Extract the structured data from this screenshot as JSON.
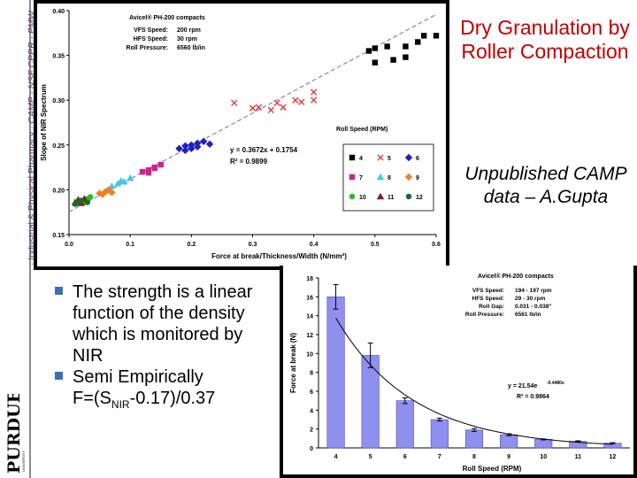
{
  "sidebar": {
    "text_a": "· Industrial & Physical Pharmacy · ",
    "text_b": "CAMP - NSF CPPR - PMW",
    "logo_text": "PURDUE",
    "logo_sub": "UNIVERSITY"
  },
  "slide": {
    "title": "Dry Granulation by Roller Compaction",
    "subtitle": "Unpublished CAMP data – A.Gupta",
    "bullets": [
      "The strength is a linear function of the density which is monitored by NIR",
      "Semi Empirically"
    ],
    "formula_pre": "F=(S",
    "formula_sub": "NIR",
    "formula_post": "-0.17)/0.37"
  },
  "colors": {
    "title": "#c00000",
    "bullet_marker": "#3f6fb0",
    "sidebar_text": "#5a2f7a",
    "bar_fill": "#8f8fef"
  },
  "chart_data": [
    {
      "type": "scatter",
      "xlabel": "Force at break/Thickness/Width (N/mm²)",
      "ylabel": "Slope of NIR Spectrum",
      "xlim": [
        0.0,
        0.6
      ],
      "ylim": [
        0.15,
        0.4
      ],
      "x_ticks": [
        "0.0",
        "0.1",
        "0.2",
        "0.3",
        "0.4",
        "0.5",
        "0.6"
      ],
      "y_ticks": [
        "0.15",
        "0.20",
        "0.25",
        "0.30",
        "0.35",
        "0.40"
      ],
      "grid": false,
      "info": {
        "header": "Avicel® PH-200 compacts",
        "rows": [
          [
            "VFS Speed:",
            "200 rpm"
          ],
          [
            "HFS Speed:",
            "30 rpm"
          ],
          [
            "Roll Pressure:",
            "6560 lb/in"
          ]
        ]
      },
      "equation": "y = 0.3672x + 0.1754",
      "r2": "R² = 0.9899",
      "fit": {
        "slope": 0.3672,
        "intercept": 0.1754,
        "x_range": [
          0.0,
          0.6
        ]
      },
      "legend_title": "Roll Speed (RPM)",
      "legend_position": "bottom-right",
      "series": [
        {
          "name": "4",
          "marker": "square",
          "color": "#000000",
          "points": [
            [
              0.49,
              0.355
            ],
            [
              0.5,
              0.358
            ],
            [
              0.52,
              0.36
            ],
            [
              0.55,
              0.36
            ],
            [
              0.57,
              0.365
            ],
            [
              0.58,
              0.372
            ],
            [
              0.6,
              0.372
            ],
            [
              0.53,
              0.345
            ],
            [
              0.55,
              0.348
            ],
            [
              0.5,
              0.342
            ]
          ]
        },
        {
          "name": "5",
          "marker": "x",
          "color": "#e03030",
          "points": [
            [
              0.27,
              0.297
            ],
            [
              0.3,
              0.291
            ],
            [
              0.31,
              0.292
            ],
            [
              0.33,
              0.289
            ],
            [
              0.35,
              0.292
            ],
            [
              0.37,
              0.3
            ],
            [
              0.38,
              0.298
            ],
            [
              0.4,
              0.309
            ],
            [
              0.34,
              0.297
            ],
            [
              0.4,
              0.3
            ]
          ]
        },
        {
          "name": "6",
          "marker": "diamond",
          "color": "#2020c0",
          "points": [
            [
              0.18,
              0.246
            ],
            [
              0.19,
              0.249
            ],
            [
              0.2,
              0.25
            ],
            [
              0.21,
              0.252
            ],
            [
              0.22,
              0.254
            ],
            [
              0.19,
              0.244
            ],
            [
              0.2,
              0.246
            ],
            [
              0.21,
              0.248
            ],
            [
              0.23,
              0.251
            ]
          ]
        },
        {
          "name": "7",
          "marker": "square",
          "color": "#d02090",
          "points": [
            [
              0.12,
              0.22
            ],
            [
              0.13,
              0.222
            ],
            [
              0.14,
              0.225
            ],
            [
              0.15,
              0.228
            ],
            [
              0.13,
              0.219
            ],
            [
              0.14,
              0.224
            ]
          ]
        },
        {
          "name": "8",
          "marker": "triangle",
          "color": "#40c8e8",
          "points": [
            [
              0.07,
              0.204
            ],
            [
              0.08,
              0.207
            ],
            [
              0.09,
              0.209
            ],
            [
              0.1,
              0.213
            ],
            [
              0.085,
              0.21
            ]
          ]
        },
        {
          "name": "9",
          "marker": "diamond",
          "color": "#f08020",
          "points": [
            [
              0.05,
              0.196
            ],
            [
              0.06,
              0.198
            ],
            [
              0.065,
              0.2
            ],
            [
              0.07,
              0.197
            ],
            [
              0.055,
              0.195
            ]
          ]
        },
        {
          "name": "10",
          "marker": "circle",
          "color": "#20c020",
          "points": [
            [
              0.02,
              0.188
            ],
            [
              0.03,
              0.19
            ],
            [
              0.035,
              0.192
            ],
            [
              0.025,
              0.186
            ]
          ]
        },
        {
          "name": "11",
          "marker": "triangle",
          "color": "#8b1a1a",
          "points": [
            [
              0.01,
              0.186
            ],
            [
              0.015,
              0.189
            ],
            [
              0.02,
              0.185
            ],
            [
              0.025,
              0.19
            ]
          ]
        },
        {
          "name": "12",
          "marker": "circle",
          "color": "#1a6b2a",
          "points": [
            [
              0.01,
              0.184
            ],
            [
              0.015,
              0.187
            ],
            [
              0.02,
              0.188
            ],
            [
              0.03,
              0.186
            ]
          ]
        }
      ]
    },
    {
      "type": "bar",
      "xlabel": "Roll Speed (RPM)",
      "ylabel": "Force at break (N)",
      "ylim": [
        0,
        18
      ],
      "y_ticks": [
        "0",
        "2",
        "4",
        "6",
        "8",
        "10",
        "12",
        "14",
        "16",
        "18"
      ],
      "categories": [
        "4",
        "5",
        "6",
        "7",
        "8",
        "9",
        "10",
        "11",
        "12"
      ],
      "values": [
        16.0,
        9.8,
        5.0,
        3.0,
        1.9,
        1.4,
        0.9,
        0.7,
        0.5
      ],
      "errors": [
        1.3,
        1.3,
        0.3,
        0.15,
        0.15,
        0.1,
        0.05,
        0.05,
        0.05
      ],
      "info": {
        "header": "Avicel® PH-200 compacts",
        "rows": [
          [
            "VFS Speed:",
            "194 - 197 rpm"
          ],
          [
            "HFS Speed:",
            "29 - 30 rpm"
          ],
          [
            "Roll Gap:",
            "0.031 - 0.038\""
          ],
          [
            "Roll Pressure:",
            "6561 lb/in"
          ]
        ]
      },
      "equation": "y = 21.54e",
      "equation_exp": "-0.4480x",
      "r2": "R² = 0.9864",
      "fit": {
        "a": 21.54,
        "b": -0.448,
        "x_index_from": 1
      }
    }
  ]
}
